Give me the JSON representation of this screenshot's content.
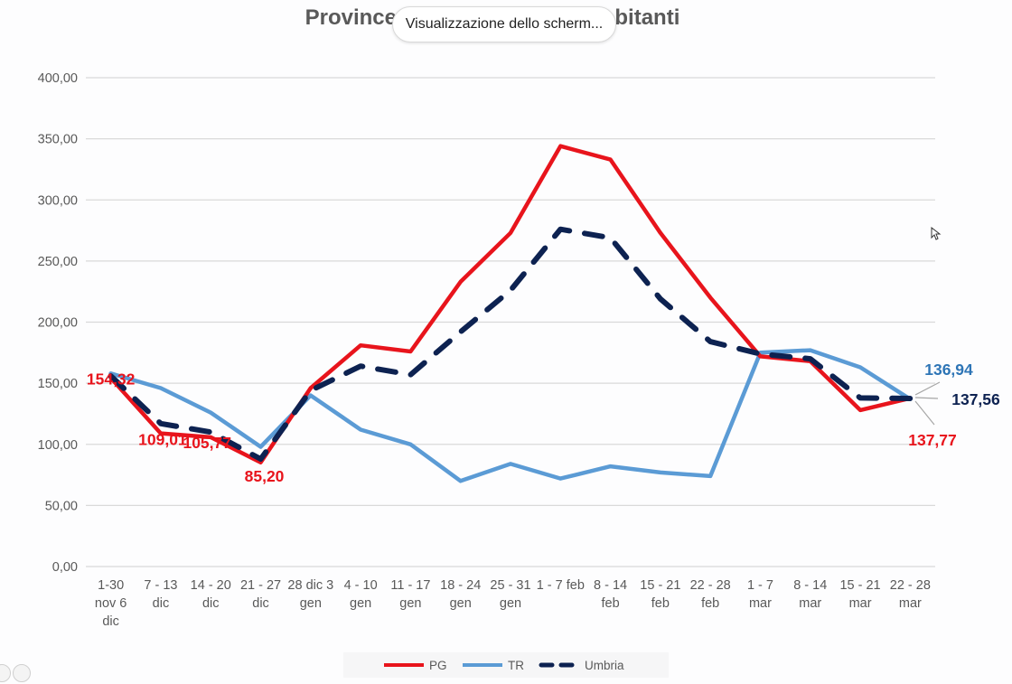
{
  "toast": {
    "text": "Visualizzazione dello scherm..."
  },
  "chart_data": {
    "type": "line",
    "title_left": "Province in",
    "title_right": "abitanti",
    "ylim": [
      0,
      400
    ],
    "y_ticks": [
      "0,00",
      "50,00",
      "100,00",
      "150,00",
      "200,00",
      "250,00",
      "300,00",
      "350,00",
      "400,00"
    ],
    "categories": [
      [
        "1-30",
        "nov 6",
        "dic"
      ],
      [
        "7 - 13",
        "dic"
      ],
      [
        "14 - 20",
        "dic"
      ],
      [
        "21 - 27",
        "dic"
      ],
      [
        "28 dic 3",
        "gen"
      ],
      [
        "4 - 10",
        "gen"
      ],
      [
        "11 - 17",
        "gen"
      ],
      [
        "18 - 24",
        "gen"
      ],
      [
        "25 - 31",
        "gen"
      ],
      [
        "1 - 7 feb"
      ],
      [
        "8 - 14",
        "feb"
      ],
      [
        "15 - 21",
        "feb"
      ],
      [
        "22 - 28",
        "feb"
      ],
      [
        "1 - 7",
        "mar"
      ],
      [
        "8 - 14",
        "mar"
      ],
      [
        "15 - 21",
        "mar"
      ],
      [
        "22 - 28",
        "mar"
      ]
    ],
    "series": [
      {
        "name": "PG",
        "color": "#e8141c",
        "dash": false,
        "values": [
          154.32,
          109.01,
          105.77,
          85.2,
          146,
          181,
          176,
          233,
          273,
          344,
          333,
          273,
          220,
          172,
          168,
          128,
          137.77
        ]
      },
      {
        "name": "TR",
        "color": "#5b9bd5",
        "dash": false,
        "values": [
          158,
          146,
          126,
          98,
          140,
          112,
          100,
          70,
          84,
          72,
          82,
          77,
          74,
          175,
          177,
          163,
          136.94
        ]
      },
      {
        "name": "Umbria",
        "color": "#0d2251",
        "dash": true,
        "values": [
          156,
          117,
          110,
          88,
          144,
          164,
          157,
          192,
          226,
          276,
          269,
          219,
          184,
          174,
          170,
          138,
          137.56
        ]
      }
    ],
    "data_labels": [
      {
        "series": 0,
        "index": 0,
        "text": "154,32",
        "color": "#e8141c"
      },
      {
        "series": 0,
        "index": 1,
        "text": "109,01",
        "color": "#e8141c"
      },
      {
        "series": 0,
        "index": 2,
        "text": "105,77",
        "color": "#e8141c"
      },
      {
        "series": 0,
        "index": 3,
        "text": "85,20",
        "color": "#e8141c"
      },
      {
        "series": 1,
        "index": 16,
        "text": "136,94",
        "color": "#2e75b6"
      },
      {
        "series": 2,
        "index": 16,
        "text": "137,56",
        "color": "#0d2251"
      },
      {
        "series": 0,
        "index": 16,
        "text": "137,77",
        "color": "#e8141c"
      }
    ],
    "grid": true,
    "legend_position": "bottom"
  }
}
